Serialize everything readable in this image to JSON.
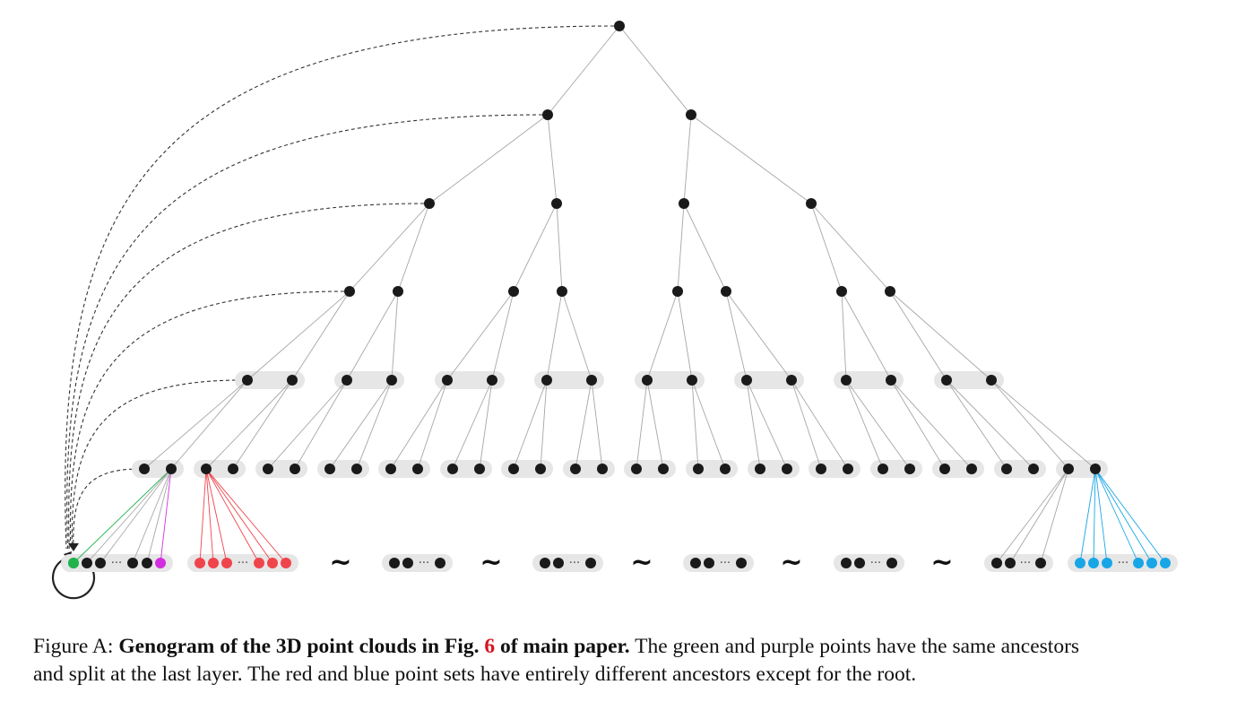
{
  "figure": {
    "label": "Figure A:",
    "title_bold_1": "Genogram of the 3D point clouds in Fig.",
    "figure_ref": "6",
    "title_bold_2": "of main paper.",
    "text_1": "The green and purple points have the same ancestors",
    "text_2": "and split at the last layer. The red and blue point sets have entirely different ancestors except for the root.",
    "ellipsis": "···",
    "tilde": "~"
  },
  "colors": {
    "node": "#1a1a1a",
    "edge": "#a6a6a6",
    "group_bg": "#e6e6e6",
    "green": "#22b24c",
    "purple": "#d22ee0",
    "red": "#f0444d",
    "blue": "#18a6e6"
  },
  "tree": {
    "levels": 7,
    "root_children": 2,
    "leaf_sets_shown": [
      "black-green-purple",
      "red",
      "black",
      "black",
      "black",
      "black",
      "black",
      "blue"
    ]
  }
}
